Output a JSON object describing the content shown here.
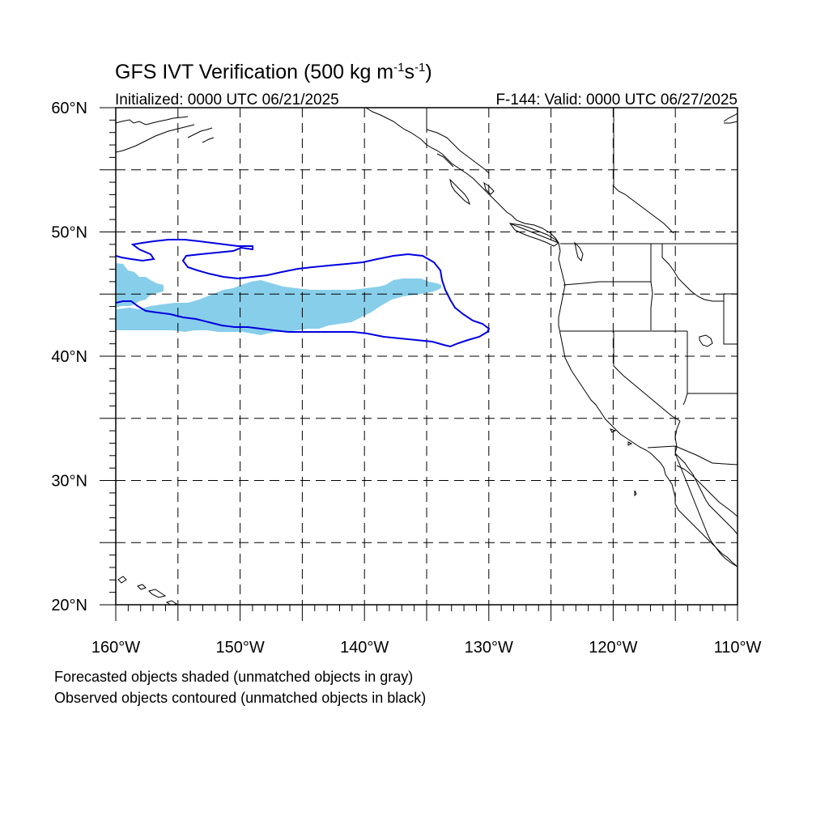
{
  "title": {
    "text": "GFS IVT Verification (500 kg m",
    "sup1": "-1",
    "mid": "s",
    "sup2": "-1",
    "end": ")"
  },
  "subtitle_left": "Initialized: 0000 UTC 06/21/2025",
  "subtitle_right": "F-144: Valid: 0000 UTC 06/27/2025",
  "map_extent": {
    "lon_min": -160,
    "lon_max": -110,
    "lat_min": 20,
    "lat_max": 60
  },
  "lat_labels": [
    {
      "lat": 60,
      "text": "60°N"
    },
    {
      "lat": 50,
      "text": "50°N"
    },
    {
      "lat": 40,
      "text": "40°N"
    },
    {
      "lat": 30,
      "text": "30°N"
    },
    {
      "lat": 20,
      "text": "20°N"
    }
  ],
  "lon_labels": [
    {
      "lon": -160,
      "text": "160°W"
    },
    {
      "lon": -150,
      "text": "150°W"
    },
    {
      "lon": -140,
      "text": "140°W"
    },
    {
      "lon": -130,
      "text": "130°W"
    },
    {
      "lon": -120,
      "text": "120°W"
    },
    {
      "lon": -110,
      "text": "110°W"
    }
  ],
  "footnotes": [
    "Forecasted objects shaded (unmatched objects in gray)",
    "Observed objects contoured (unmatched objects in black)"
  ],
  "colors": {
    "forecast_fill": "#87ceeb",
    "observed_contour": "#0000e0",
    "grid": "#000000",
    "coast": "#000000"
  }
}
